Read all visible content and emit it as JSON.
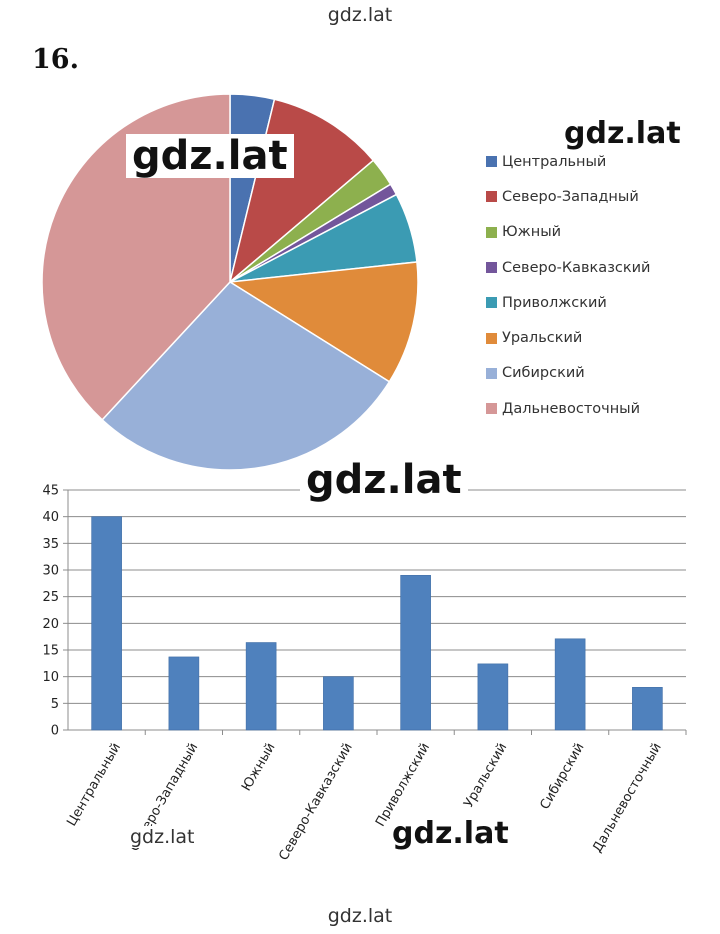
{
  "watermarks": {
    "top": "gdz.lat",
    "pie_big": "gdz.lat",
    "pie_right": "gdz.lat",
    "bar_center": "gdz.lat",
    "bar_bottom_left": "gdz.lat",
    "bar_bottom_center": "gdz.lat",
    "bottom": "gdz.lat"
  },
  "task_number": "16.",
  "chart_data": [
    {
      "type": "pie",
      "categories": [
        "Центральный",
        "Северо-Западный",
        "Южный",
        "Северо-Кавказский",
        "Приволжский",
        "Уральский",
        "Сибирский",
        "Дальневосточный"
      ],
      "values": [
        3.8,
        10.0,
        2.5,
        1.0,
        6.0,
        10.6,
        28.0,
        38.1
      ],
      "colors": [
        "#4a72b0",
        "#b94a48",
        "#8db04e",
        "#73569b",
        "#3b9bb3",
        "#e08b3a",
        "#98b0d8",
        "#d59797"
      ],
      "legend": "right"
    },
    {
      "type": "bar",
      "categories": [
        "Центральный",
        "Северо-Западный",
        "Южный",
        "Северо-Кавказский",
        "Приволжский",
        "Уральский",
        "Сибирский",
        "Дальневосточный"
      ],
      "values": [
        40,
        13.7,
        16.4,
        10,
        29,
        12.4,
        17.1,
        8
      ],
      "ylim": [
        0,
        45
      ],
      "yticks": [
        0,
        5,
        10,
        15,
        20,
        25,
        30,
        35,
        40,
        45
      ],
      "grid": true,
      "color": "#4f81bd"
    }
  ]
}
